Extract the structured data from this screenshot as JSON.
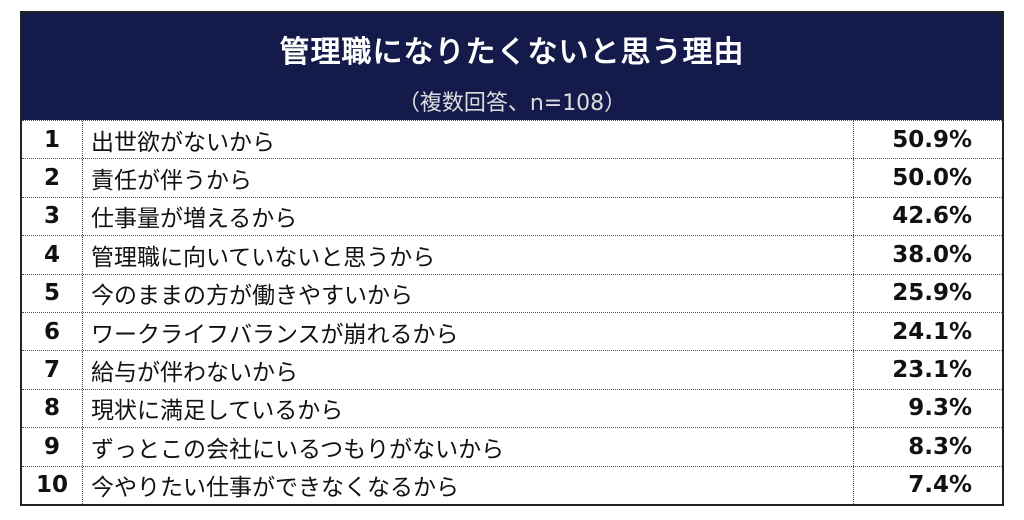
{
  "header": {
    "title": "管理職になりたくないと思う理由",
    "subtitle": "（複数回答、n=108）"
  },
  "rows": [
    {
      "rank": "1",
      "label": "出世欲がないから",
      "value": "50.9%"
    },
    {
      "rank": "2",
      "label": "責任が伴うから",
      "value": "50.0%"
    },
    {
      "rank": "3",
      "label": "仕事量が増えるから",
      "value": "42.6%"
    },
    {
      "rank": "4",
      "label": "管理職に向いていないと思うから",
      "value": "38.0%"
    },
    {
      "rank": "5",
      "label": "今のままの方が働きやすいから",
      "value": "25.9%"
    },
    {
      "rank": "6",
      "label": "ワークライフバランスが崩れるから",
      "value": "24.1%"
    },
    {
      "rank": "7",
      "label": "給与が伴わないから",
      "value": "23.1%"
    },
    {
      "rank": "8",
      "label": "現状に満足しているから",
      "value": "9.3%"
    },
    {
      "rank": "9",
      "label": "ずっとこの会社にいるつもりがないから",
      "value": "8.3%"
    },
    {
      "rank": "10",
      "label": "今やりたい仕事ができなくなるから",
      "value": "7.4%"
    }
  ],
  "colors": {
    "header_bg": "#141a4a",
    "header_text": "#ffffff"
  }
}
